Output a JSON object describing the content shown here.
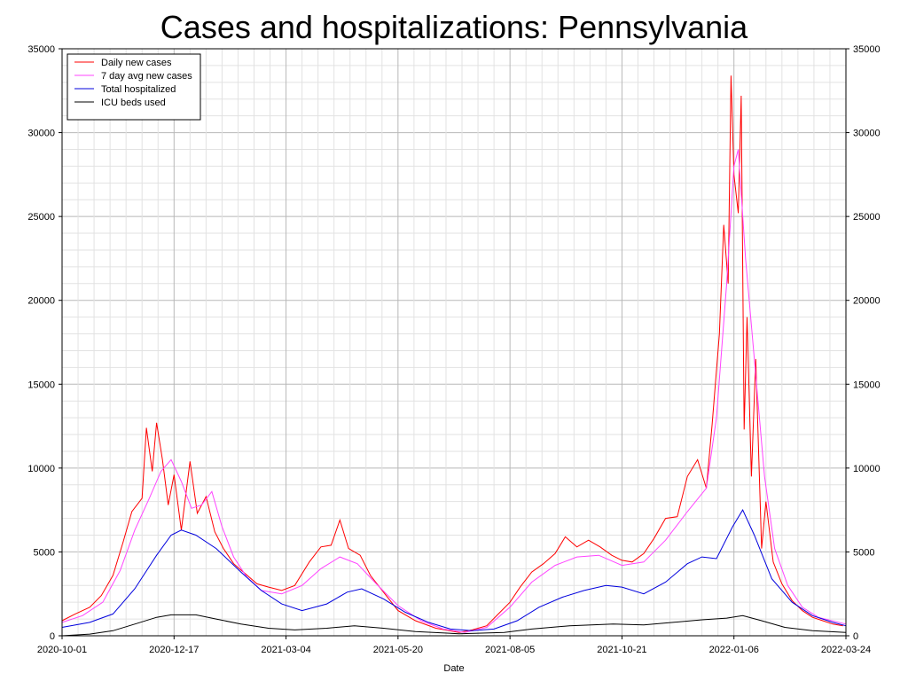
{
  "chart_data": {
    "type": "line",
    "title": "Cases and hospitalizations: Pennsylvania",
    "xlabel": "Date",
    "ylabel": "",
    "ylim": [
      0,
      35000
    ],
    "y_ticks": [
      "0",
      "5000",
      "10000",
      "15000",
      "20000",
      "25000",
      "30000",
      "35000"
    ],
    "x_ticks": [
      "2020-10-01",
      "2020-12-17",
      "2021-03-04",
      "2021-05-20",
      "2021-08-05",
      "2021-10-21",
      "2022-01-06",
      "2022-03-24"
    ],
    "xlim": [
      "2020-10-01",
      "2022-03-24"
    ],
    "grid": true,
    "legend_position": "top-left",
    "series": [
      {
        "name": "Daily new cases",
        "color": "#ff0000",
        "points": [
          [
            "2020-10-01",
            900
          ],
          [
            "2020-10-10",
            1300
          ],
          [
            "2020-10-20",
            1700
          ],
          [
            "2020-10-28",
            2400
          ],
          [
            "2020-11-05",
            3600
          ],
          [
            "2020-11-12",
            5600
          ],
          [
            "2020-11-18",
            7400
          ],
          [
            "2020-11-25",
            8200
          ],
          [
            "2020-11-28",
            12400
          ],
          [
            "2020-12-02",
            9800
          ],
          [
            "2020-12-05",
            12700
          ],
          [
            "2020-12-09",
            10500
          ],
          [
            "2020-12-13",
            7800
          ],
          [
            "2020-12-17",
            9600
          ],
          [
            "2020-12-22",
            6300
          ],
          [
            "2020-12-28",
            10400
          ],
          [
            "2021-01-02",
            7300
          ],
          [
            "2021-01-08",
            8300
          ],
          [
            "2021-01-14",
            6200
          ],
          [
            "2021-01-20",
            5200
          ],
          [
            "2021-01-27",
            4300
          ],
          [
            "2021-02-04",
            3700
          ],
          [
            "2021-02-12",
            3100
          ],
          [
            "2021-02-20",
            2900
          ],
          [
            "2021-03-01",
            2700
          ],
          [
            "2021-03-10",
            3000
          ],
          [
            "2021-03-20",
            4400
          ],
          [
            "2021-03-28",
            5300
          ],
          [
            "2021-04-04",
            5400
          ],
          [
            "2021-04-10",
            6900
          ],
          [
            "2021-04-16",
            5200
          ],
          [
            "2021-04-24",
            4800
          ],
          [
            "2021-05-01",
            3600
          ],
          [
            "2021-05-10",
            2600
          ],
          [
            "2021-05-20",
            1500
          ],
          [
            "2021-06-01",
            900
          ],
          [
            "2021-06-15",
            450
          ],
          [
            "2021-07-01",
            200
          ],
          [
            "2021-07-10",
            350
          ],
          [
            "2021-07-20",
            600
          ],
          [
            "2021-07-28",
            1300
          ],
          [
            "2021-08-05",
            2000
          ],
          [
            "2021-08-12",
            2900
          ],
          [
            "2021-08-20",
            3800
          ],
          [
            "2021-08-28",
            4300
          ],
          [
            "2021-09-05",
            4900
          ],
          [
            "2021-09-12",
            5900
          ],
          [
            "2021-09-20",
            5300
          ],
          [
            "2021-09-28",
            5700
          ],
          [
            "2021-10-06",
            5300
          ],
          [
            "2021-10-14",
            4800
          ],
          [
            "2021-10-21",
            4500
          ],
          [
            "2021-10-28",
            4400
          ],
          [
            "2021-11-05",
            4900
          ],
          [
            "2021-11-12",
            5800
          ],
          [
            "2021-11-20",
            7000
          ],
          [
            "2021-11-28",
            7100
          ],
          [
            "2021-12-05",
            9500
          ],
          [
            "2021-12-12",
            10500
          ],
          [
            "2021-12-18",
            8800
          ],
          [
            "2021-12-22",
            12600
          ],
          [
            "2021-12-27",
            18000
          ],
          [
            "2021-12-30",
            24500
          ],
          [
            "2022-01-02",
            21000
          ],
          [
            "2022-01-04",
            33400
          ],
          [
            "2022-01-06",
            27500
          ],
          [
            "2022-01-09",
            25200
          ],
          [
            "2022-01-11",
            32200
          ],
          [
            "2022-01-13",
            12300
          ],
          [
            "2022-01-15",
            19000
          ],
          [
            "2022-01-18",
            9500
          ],
          [
            "2022-01-21",
            16500
          ],
          [
            "2022-01-25",
            5200
          ],
          [
            "2022-01-28",
            8000
          ],
          [
            "2022-02-02",
            4400
          ],
          [
            "2022-02-08",
            3100
          ],
          [
            "2022-02-15",
            2100
          ],
          [
            "2022-02-22",
            1500
          ],
          [
            "2022-03-01",
            1100
          ],
          [
            "2022-03-08",
            900
          ],
          [
            "2022-03-15",
            700
          ],
          [
            "2022-03-22",
            600
          ]
        ]
      },
      {
        "name": "7 day avg new cases",
        "color": "#ff44ff",
        "points": [
          [
            "2020-10-01",
            800
          ],
          [
            "2020-10-15",
            1200
          ],
          [
            "2020-10-29",
            2000
          ],
          [
            "2020-11-10",
            3900
          ],
          [
            "2020-11-20",
            6300
          ],
          [
            "2020-11-30",
            8200
          ],
          [
            "2020-12-08",
            9800
          ],
          [
            "2020-12-15",
            10500
          ],
          [
            "2020-12-22",
            9200
          ],
          [
            "2020-12-29",
            7600
          ],
          [
            "2021-01-05",
            7800
          ],
          [
            "2021-01-12",
            8600
          ],
          [
            "2021-01-19",
            6500
          ],
          [
            "2021-01-27",
            4700
          ],
          [
            "2021-02-05",
            3500
          ],
          [
            "2021-02-15",
            2700
          ],
          [
            "2021-03-01",
            2500
          ],
          [
            "2021-03-15",
            3000
          ],
          [
            "2021-03-28",
            4000
          ],
          [
            "2021-04-10",
            4700
          ],
          [
            "2021-04-22",
            4300
          ],
          [
            "2021-05-05",
            3100
          ],
          [
            "2021-05-20",
            1800
          ],
          [
            "2021-06-05",
            900
          ],
          [
            "2021-06-20",
            400
          ],
          [
            "2021-07-05",
            200
          ],
          [
            "2021-07-20",
            500
          ],
          [
            "2021-08-05",
            1700
          ],
          [
            "2021-08-20",
            3200
          ],
          [
            "2021-09-05",
            4200
          ],
          [
            "2021-09-20",
            4700
          ],
          [
            "2021-10-05",
            4800
          ],
          [
            "2021-10-21",
            4200
          ],
          [
            "2021-11-05",
            4400
          ],
          [
            "2021-11-20",
            5700
          ],
          [
            "2021-12-05",
            7400
          ],
          [
            "2021-12-18",
            8800
          ],
          [
            "2021-12-25",
            13000
          ],
          [
            "2022-01-01",
            21000
          ],
          [
            "2022-01-06",
            28000
          ],
          [
            "2022-01-09",
            29000
          ],
          [
            "2022-01-14",
            22500
          ],
          [
            "2022-01-20",
            16500
          ],
          [
            "2022-01-27",
            9500
          ],
          [
            "2022-02-03",
            5200
          ],
          [
            "2022-02-12",
            3000
          ],
          [
            "2022-02-22",
            1700
          ],
          [
            "2022-03-05",
            1100
          ],
          [
            "2022-03-24",
            700
          ]
        ]
      },
      {
        "name": "Total hospitalized",
        "color": "#0000dd",
        "points": [
          [
            "2020-10-01",
            500
          ],
          [
            "2020-10-20",
            800
          ],
          [
            "2020-11-05",
            1300
          ],
          [
            "2020-11-20",
            2800
          ],
          [
            "2020-12-05",
            4800
          ],
          [
            "2020-12-15",
            6000
          ],
          [
            "2020-12-22",
            6300
          ],
          [
            "2021-01-01",
            6000
          ],
          [
            "2021-01-15",
            5200
          ],
          [
            "2021-02-01",
            3800
          ],
          [
            "2021-02-15",
            2700
          ],
          [
            "2021-03-01",
            1900
          ],
          [
            "2021-03-15",
            1500
          ],
          [
            "2021-04-01",
            1900
          ],
          [
            "2021-04-15",
            2600
          ],
          [
            "2021-04-25",
            2800
          ],
          [
            "2021-05-10",
            2200
          ],
          [
            "2021-05-25",
            1400
          ],
          [
            "2021-06-10",
            800
          ],
          [
            "2021-06-25",
            400
          ],
          [
            "2021-07-10",
            300
          ],
          [
            "2021-07-25",
            400
          ],
          [
            "2021-08-10",
            900
          ],
          [
            "2021-08-25",
            1700
          ],
          [
            "2021-09-10",
            2300
          ],
          [
            "2021-09-25",
            2700
          ],
          [
            "2021-10-10",
            3000
          ],
          [
            "2021-10-21",
            2900
          ],
          [
            "2021-11-05",
            2500
          ],
          [
            "2021-11-20",
            3200
          ],
          [
            "2021-12-05",
            4300
          ],
          [
            "2021-12-15",
            4700
          ],
          [
            "2021-12-25",
            4600
          ],
          [
            "2022-01-05",
            6500
          ],
          [
            "2022-01-12",
            7500
          ],
          [
            "2022-01-20",
            6000
          ],
          [
            "2022-02-01",
            3400
          ],
          [
            "2022-02-15",
            2000
          ],
          [
            "2022-03-01",
            1200
          ],
          [
            "2022-03-15",
            800
          ],
          [
            "2022-03-24",
            600
          ]
        ]
      },
      {
        "name": "ICU beds used",
        "color": "#000000",
        "points": [
          [
            "2020-10-01",
            0
          ],
          [
            "2020-10-20",
            100
          ],
          [
            "2020-11-05",
            300
          ],
          [
            "2020-11-20",
            700
          ],
          [
            "2020-12-05",
            1100
          ],
          [
            "2020-12-15",
            1250
          ],
          [
            "2021-01-01",
            1250
          ],
          [
            "2021-01-15",
            1000
          ],
          [
            "2021-02-01",
            700
          ],
          [
            "2021-02-20",
            450
          ],
          [
            "2021-03-10",
            350
          ],
          [
            "2021-04-01",
            450
          ],
          [
            "2021-04-20",
            600
          ],
          [
            "2021-05-10",
            450
          ],
          [
            "2021-06-01",
            250
          ],
          [
            "2021-07-01",
            120
          ],
          [
            "2021-08-01",
            200
          ],
          [
            "2021-08-20",
            400
          ],
          [
            "2021-09-15",
            600
          ],
          [
            "2021-10-15",
            700
          ],
          [
            "2021-11-05",
            650
          ],
          [
            "2021-11-25",
            800
          ],
          [
            "2021-12-15",
            950
          ],
          [
            "2022-01-01",
            1050
          ],
          [
            "2022-01-12",
            1200
          ],
          [
            "2022-01-25",
            900
          ],
          [
            "2022-02-10",
            500
          ],
          [
            "2022-03-01",
            300
          ],
          [
            "2022-03-24",
            200
          ]
        ]
      }
    ]
  }
}
